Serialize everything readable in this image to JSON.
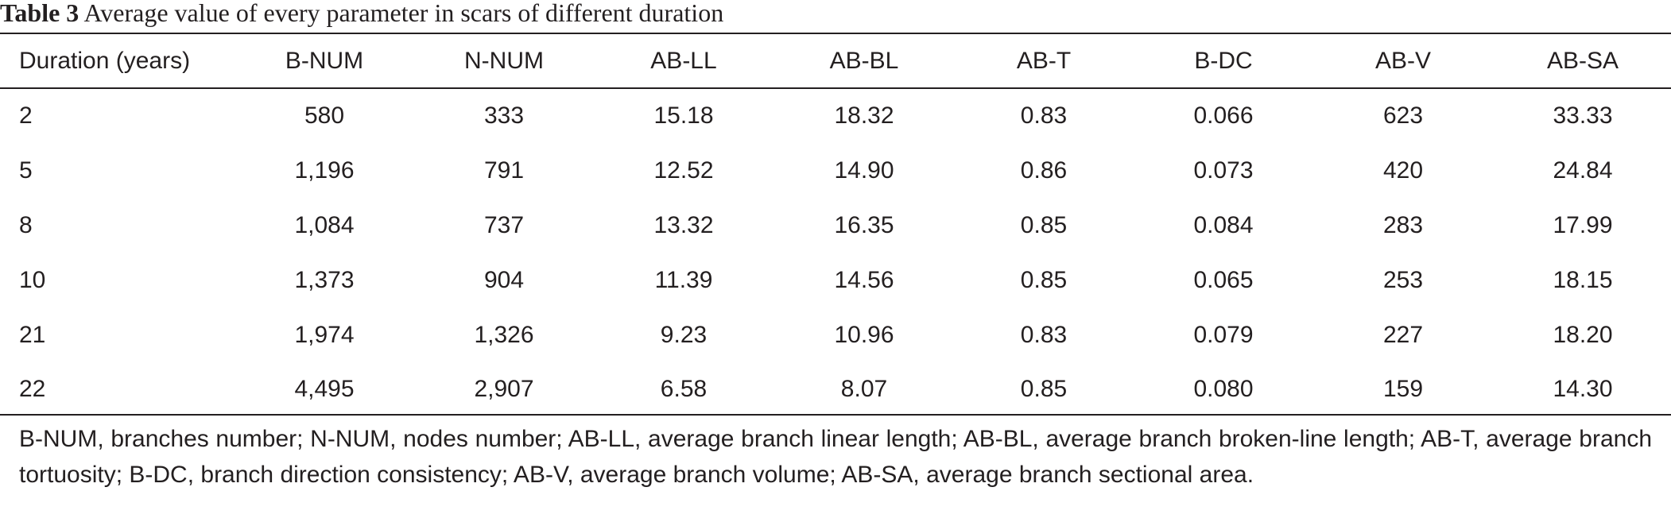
{
  "caption": {
    "label": "Table 3",
    "text": "Average value of every parameter in scars of different duration"
  },
  "table": {
    "headers": [
      "Duration (years)",
      "B-NUM",
      "N-NUM",
      "AB-LL",
      "AB-BL",
      "AB-T",
      "B-DC",
      "AB-V",
      "AB-SA"
    ],
    "rows": [
      [
        "2",
        "580",
        "333",
        "15.18",
        "18.32",
        "0.83",
        "0.066",
        "623",
        "33.33"
      ],
      [
        "5",
        "1,196",
        "791",
        "12.52",
        "14.90",
        "0.86",
        "0.073",
        "420",
        "24.84"
      ],
      [
        "8",
        "1,084",
        "737",
        "13.32",
        "16.35",
        "0.85",
        "0.084",
        "283",
        "17.99"
      ],
      [
        "10",
        "1,373",
        "904",
        "11.39",
        "14.56",
        "0.85",
        "0.065",
        "253",
        "18.15"
      ],
      [
        "21",
        "1,974",
        "1,326",
        "9.23",
        "10.96",
        "0.83",
        "0.079",
        "227",
        "18.20"
      ],
      [
        "22",
        "4,495",
        "2,907",
        "6.58",
        "8.07",
        "0.85",
        "0.080",
        "159",
        "14.30"
      ]
    ]
  },
  "footnote": "B-NUM, branches number; N-NUM, nodes number; AB-LL, average branch linear length; AB-BL, average branch broken-line length; AB-T, average branch tortuosity; B-DC, branch direction consistency; AB-V, average branch volume; AB-SA, average branch sectional area."
}
